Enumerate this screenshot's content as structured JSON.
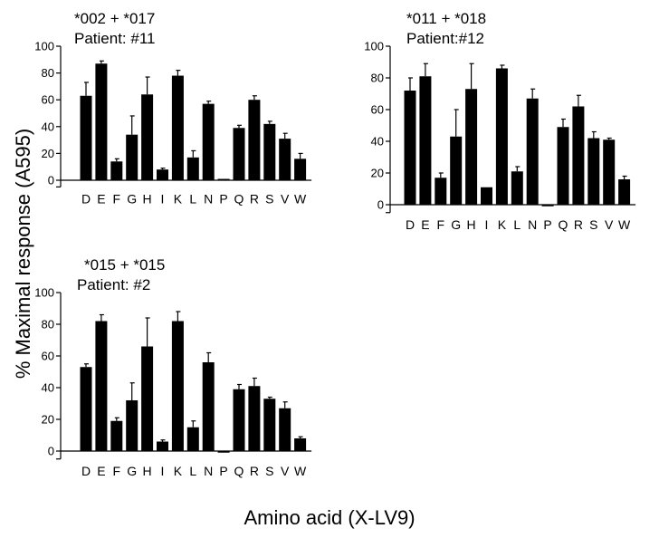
{
  "figure": {
    "ylabel": "% Maximal response (A595)",
    "xlabel": "Amino acid (X-LV9)"
  },
  "chart_data": [
    {
      "type": "bar",
      "title": "*002 + *017",
      "subtitle": "Patient: #11",
      "categories": [
        "D",
        "E",
        "F",
        "G",
        "H",
        "I",
        "K",
        "L",
        "N",
        "P",
        "Q",
        "R",
        "S",
        "V",
        "W"
      ],
      "values": [
        63,
        87,
        14,
        34,
        64,
        8,
        78,
        17,
        57,
        1,
        39,
        60,
        42,
        31,
        16
      ],
      "errors": [
        10,
        2,
        2,
        14,
        13,
        1,
        4,
        5,
        2,
        0.5,
        2,
        3,
        2,
        4,
        4
      ],
      "yticks": [
        0,
        20,
        40,
        60,
        80,
        100
      ],
      "ylim": [
        -5,
        100
      ],
      "bar_color": "#000000"
    },
    {
      "type": "bar",
      "title": "*011 + *018",
      "subtitle": "Patient:#12",
      "categories": [
        "D",
        "E",
        "F",
        "G",
        "H",
        "I",
        "K",
        "L",
        "N",
        "P",
        "Q",
        "R",
        "S",
        "V",
        "W"
      ],
      "values": [
        72,
        81,
        17,
        43,
        73,
        11,
        86,
        21,
        67,
        -1,
        49,
        62,
        42,
        41,
        16
      ],
      "errors": [
        8,
        8,
        3,
        17,
        16,
        0.5,
        2,
        3,
        6,
        0.5,
        5,
        7,
        4,
        1,
        2
      ],
      "yticks": [
        0,
        20,
        40,
        60,
        80,
        100
      ],
      "ylim": [
        -5,
        100
      ],
      "bar_color": "#000000"
    },
    {
      "type": "bar",
      "title": "*015 + *015",
      "subtitle": "Patient: #2",
      "categories": [
        "D",
        "E",
        "F",
        "G",
        "H",
        "I",
        "K",
        "L",
        "N",
        "P",
        "Q",
        "R",
        "S",
        "V",
        "W"
      ],
      "values": [
        53,
        82,
        19,
        32,
        66,
        6,
        82,
        15,
        56,
        -1,
        39,
        41,
        33,
        27,
        8
      ],
      "errors": [
        2,
        4,
        2,
        11,
        18,
        1,
        6,
        4,
        6,
        0.5,
        3,
        5,
        1,
        4,
        1
      ],
      "yticks": [
        0,
        20,
        40,
        60,
        80,
        100
      ],
      "ylim": [
        -5,
        100
      ],
      "bar_color": "#000000"
    }
  ]
}
